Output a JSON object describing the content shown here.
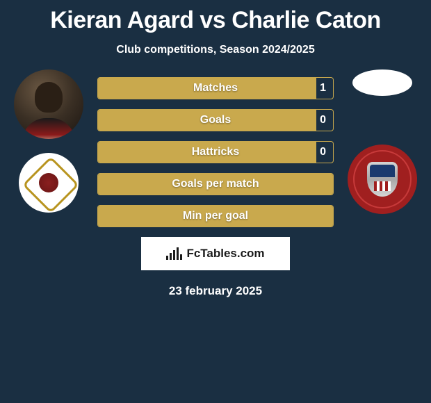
{
  "header": {
    "title": "Kieran Agard vs Charlie Caton",
    "subtitle": "Club competitions, Season 2024/2025"
  },
  "stats": [
    {
      "label": "Matches",
      "value": "1",
      "fill_pct": 93
    },
    {
      "label": "Goals",
      "value": "0",
      "fill_pct": 93
    },
    {
      "label": "Hattricks",
      "value": "0",
      "fill_pct": 93
    },
    {
      "label": "Goals per match",
      "value": "",
      "fill_pct": 100
    },
    {
      "label": "Min per goal",
      "value": "",
      "fill_pct": 100
    }
  ],
  "branding": {
    "site_name": "FcTables.com",
    "icon_bars": [
      6,
      10,
      14,
      18,
      8
    ]
  },
  "footer": {
    "date": "23 february 2025"
  },
  "colors": {
    "background": "#1a2f42",
    "accent": "#c9a94d",
    "text": "#ffffff",
    "box_bg": "#ffffff",
    "box_text": "#1a1a1a",
    "badge2_bg": "#a01f1f"
  }
}
